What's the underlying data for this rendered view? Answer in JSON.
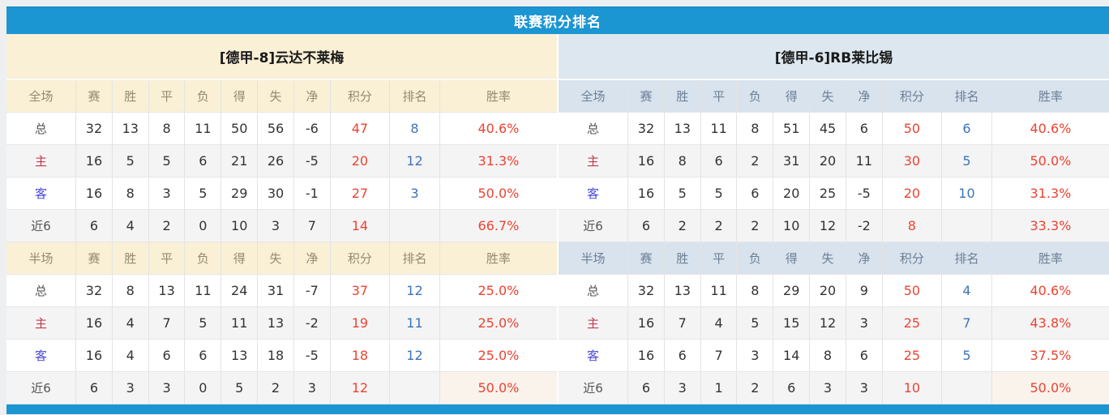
{
  "title": "联赛积分排名",
  "stat_columns": [
    "赛",
    "胜",
    "平",
    "负",
    "得",
    "失",
    "净",
    "积分",
    "排名",
    "胜率"
  ],
  "section_labels": {
    "full": "全场",
    "half": "半场"
  },
  "colors": {
    "accent_blue": "#1c95d3",
    "points_red": "#ed4331",
    "rank_blue": "#3e74b9",
    "home_label_red": "#c0394b",
    "away_label_blue": "#4b49d8",
    "left_header_bg": "#faf0d6",
    "right_header_bg": "#dde7ef"
  },
  "teams": [
    {
      "name": "[德甲-8]云达不莱梅",
      "theme": "cream",
      "full_rows": [
        {
          "label": "总",
          "cells": [
            "32",
            "13",
            "8",
            "11",
            "50",
            "56",
            "-6",
            "47",
            "8",
            "40.6%"
          ]
        },
        {
          "label": "主",
          "cells": [
            "16",
            "5",
            "5",
            "6",
            "21",
            "26",
            "-5",
            "20",
            "12",
            "31.3%"
          ]
        },
        {
          "label": "客",
          "cells": [
            "16",
            "8",
            "3",
            "5",
            "29",
            "30",
            "-1",
            "27",
            "3",
            "50.0%"
          ]
        },
        {
          "label": "近6",
          "cells": [
            "6",
            "4",
            "2",
            "0",
            "10",
            "3",
            "7",
            "14",
            "",
            "66.7%"
          ]
        }
      ],
      "half_rows": [
        {
          "label": "总",
          "cells": [
            "32",
            "8",
            "13",
            "11",
            "24",
            "31",
            "-7",
            "37",
            "12",
            "25.0%"
          ]
        },
        {
          "label": "主",
          "cells": [
            "16",
            "4",
            "7",
            "5",
            "11",
            "13",
            "-2",
            "19",
            "11",
            "25.0%"
          ]
        },
        {
          "label": "客",
          "cells": [
            "16",
            "4",
            "6",
            "6",
            "13",
            "18",
            "-5",
            "18",
            "12",
            "25.0%"
          ]
        },
        {
          "label": "近6",
          "cells": [
            "6",
            "3",
            "3",
            "0",
            "5",
            "2",
            "3",
            "12",
            "",
            "50.0%"
          ]
        }
      ]
    },
    {
      "name": "[德甲-6]RB莱比锡",
      "theme": "blue",
      "full_rows": [
        {
          "label": "总",
          "cells": [
            "32",
            "13",
            "11",
            "8",
            "51",
            "45",
            "6",
            "50",
            "6",
            "40.6%"
          ]
        },
        {
          "label": "主",
          "cells": [
            "16",
            "8",
            "6",
            "2",
            "31",
            "20",
            "11",
            "30",
            "5",
            "50.0%"
          ]
        },
        {
          "label": "客",
          "cells": [
            "16",
            "5",
            "5",
            "6",
            "20",
            "25",
            "-5",
            "20",
            "10",
            "31.3%"
          ]
        },
        {
          "label": "近6",
          "cells": [
            "6",
            "2",
            "2",
            "2",
            "10",
            "12",
            "-2",
            "8",
            "",
            "33.3%"
          ]
        }
      ],
      "half_rows": [
        {
          "label": "总",
          "cells": [
            "32",
            "13",
            "11",
            "8",
            "29",
            "20",
            "9",
            "50",
            "4",
            "40.6%"
          ]
        },
        {
          "label": "主",
          "cells": [
            "16",
            "7",
            "4",
            "5",
            "15",
            "12",
            "3",
            "25",
            "7",
            "43.8%"
          ]
        },
        {
          "label": "客",
          "cells": [
            "16",
            "6",
            "7",
            "3",
            "14",
            "8",
            "6",
            "25",
            "5",
            "37.5%"
          ]
        },
        {
          "label": "近6",
          "cells": [
            "6",
            "3",
            "1",
            "2",
            "6",
            "3",
            "3",
            "10",
            "",
            "50.0%"
          ]
        }
      ]
    }
  ]
}
